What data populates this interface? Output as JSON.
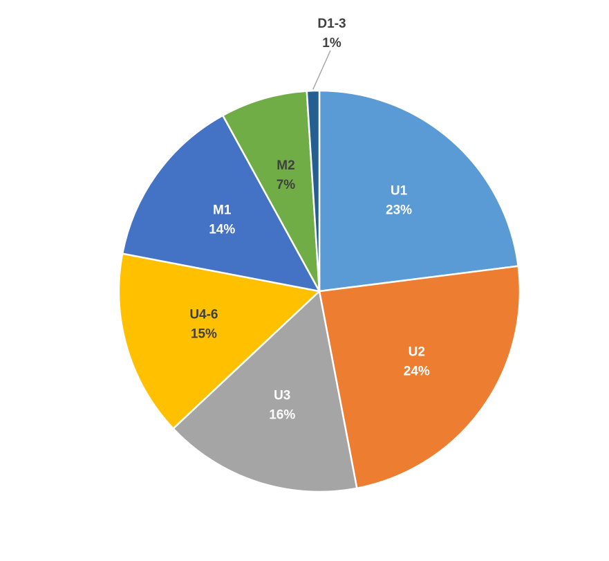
{
  "chart_data": {
    "type": "pie",
    "title": "",
    "start_angle_deg": 0,
    "direction": "clockwise",
    "legend": "none",
    "slices": [
      {
        "name": "U1",
        "label": "23%",
        "value": 23,
        "color": "#5B9BD5",
        "label_color": "#FFFFFF"
      },
      {
        "name": "U2",
        "label": "24%",
        "value": 24,
        "color": "#ED7D31",
        "label_color": "#FFFFFF"
      },
      {
        "name": "U3",
        "label": "16%",
        "value": 16,
        "color": "#A5A5A5",
        "label_color": "#FFFFFF"
      },
      {
        "name": "U4-6",
        "label": "15%",
        "value": 15,
        "color": "#FFC000",
        "label_color": "#404040"
      },
      {
        "name": "M1",
        "label": "14%",
        "value": 14,
        "color": "#4472C4",
        "label_color": "#FFFFFF"
      },
      {
        "name": "M2",
        "label": "7%",
        "value": 7,
        "color": "#70AD47",
        "label_color": "#404040"
      },
      {
        "name": "D1-3",
        "label": "1%",
        "value": 1,
        "color": "#255E91",
        "label_color": "#404040",
        "label_outside": true
      }
    ]
  }
}
